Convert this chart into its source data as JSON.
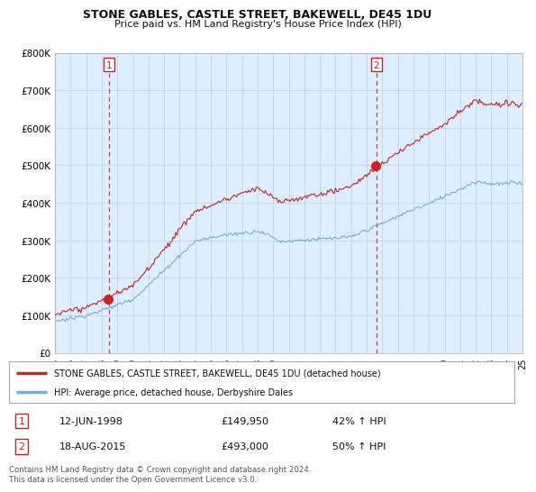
{
  "title": "STONE GABLES, CASTLE STREET, BAKEWELL, DE45 1DU",
  "subtitle": "Price paid vs. HM Land Registry's House Price Index (HPI)",
  "ylim": [
    0,
    800000
  ],
  "yticks": [
    0,
    100000,
    200000,
    300000,
    400000,
    500000,
    600000,
    700000,
    800000
  ],
  "ytick_labels": [
    "£0",
    "£100K",
    "£200K",
    "£300K",
    "£400K",
    "£500K",
    "£600K",
    "£700K",
    "£800K"
  ],
  "xmin_year": 1995,
  "xmax_year": 2025,
  "xtick_years": [
    1995,
    1996,
    1997,
    1998,
    1999,
    2000,
    2001,
    2002,
    2003,
    2004,
    2005,
    2006,
    2007,
    2008,
    2009,
    2010,
    2011,
    2012,
    2013,
    2014,
    2015,
    2016,
    2017,
    2018,
    2019,
    2020,
    2021,
    2022,
    2023,
    2024,
    2025
  ],
  "sale1_year": 1998.45,
  "sale1_price": 149950,
  "sale2_year": 2015.62,
  "sale2_price": 493000,
  "legend_line1": "STONE GABLES, CASTLE STREET, BAKEWELL, DE45 1DU (detached house)",
  "legend_line2": "HPI: Average price, detached house, Derbyshire Dales",
  "table_row1_num": "1",
  "table_row1_date": "12-JUN-1998",
  "table_row1_price": "£149,950",
  "table_row1_hpi": "42% ↑ HPI",
  "table_row2_num": "2",
  "table_row2_date": "18-AUG-2015",
  "table_row2_price": "£493,000",
  "table_row2_hpi": "50% ↑ HPI",
  "footer": "Contains HM Land Registry data © Crown copyright and database right 2024.\nThis data is licensed under the Open Government Licence v3.0.",
  "red_line_color": "#cc2222",
  "blue_line_color": "#7aadd4",
  "plot_bg_color": "#ddeeff",
  "grid_color": "#c0d4e8",
  "background_color": "#ffffff",
  "title_fontsize": 9,
  "subtitle_fontsize": 8
}
